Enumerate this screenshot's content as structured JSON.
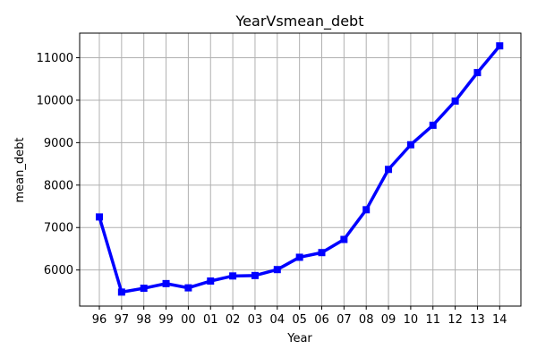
{
  "chart_data": {
    "type": "line",
    "title": "YearVsmean_debt",
    "xlabel": "Year",
    "ylabel": "mean_debt",
    "categories": [
      "96",
      "97",
      "98",
      "99",
      "00",
      "01",
      "02",
      "03",
      "04",
      "05",
      "06",
      "07",
      "08",
      "09",
      "10",
      "11",
      "12",
      "13",
      "14"
    ],
    "series": [
      {
        "values": [
          7250,
          5480,
          5570,
          5680,
          5580,
          5740,
          5860,
          5870,
          6010,
          6300,
          6410,
          6720,
          7420,
          8370,
          8950,
          9410,
          9980,
          10650,
          11280
        ],
        "color": "#0000ff",
        "marker": "square"
      }
    ],
    "yticks": [
      6000,
      7000,
      8000,
      9000,
      10000,
      11000
    ],
    "ytick_labels": [
      "6000",
      "7000",
      "8000",
      "9000",
      "10000",
      "11000"
    ],
    "ylim": [
      5150,
      11580
    ],
    "grid": true
  }
}
